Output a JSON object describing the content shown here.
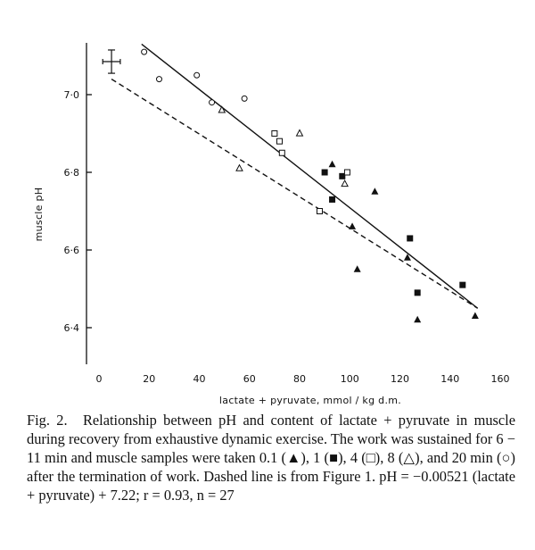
{
  "chart_data": {
    "type": "scatter",
    "xlabel": "lactate + pyruvate,  mmol / kg  d.m.",
    "ylabel": "muscle pH",
    "xlim": [
      0,
      160
    ],
    "ylim": [
      6.3,
      7.25
    ],
    "x_ticks": [
      {
        "value": 0,
        "label": "0"
      },
      {
        "value": 20,
        "label": "20"
      },
      {
        "value": 40,
        "label": "40"
      },
      {
        "value": 60,
        "label": "60"
      },
      {
        "value": 80,
        "label": "80"
      },
      {
        "value": 100,
        "label": "100"
      },
      {
        "value": 120,
        "label": "120"
      },
      {
        "value": 140,
        "label": "140"
      },
      {
        "value": 160,
        "label": "160"
      }
    ],
    "y_ticks": [
      {
        "value": 6.4,
        "label": "6·4"
      },
      {
        "value": 6.6,
        "label": "6·6"
      },
      {
        "value": 6.8,
        "label": "6·8"
      },
      {
        "value": 7.0,
        "label": "7·0"
      }
    ],
    "grid": false,
    "series": [
      {
        "marker": "filled-triangle",
        "points": [
          [
            93,
            6.82
          ],
          [
            101,
            6.66
          ],
          [
            103,
            6.55
          ],
          [
            110,
            6.75
          ],
          [
            123,
            6.58
          ],
          [
            127,
            6.42
          ],
          [
            150,
            6.43
          ]
        ]
      },
      {
        "marker": "filled-square",
        "points": [
          [
            90,
            6.8
          ],
          [
            93,
            6.73
          ],
          [
            97,
            6.79
          ],
          [
            124,
            6.63
          ],
          [
            127,
            6.49
          ],
          [
            145,
            6.51
          ]
        ]
      },
      {
        "marker": "open-square",
        "points": [
          [
            70,
            6.9
          ],
          [
            72,
            6.88
          ],
          [
            73,
            6.85
          ],
          [
            88,
            6.7
          ],
          [
            99,
            6.8
          ]
        ]
      },
      {
        "marker": "open-triangle",
        "points": [
          [
            49,
            6.96
          ],
          [
            56,
            6.81
          ],
          [
            80,
            6.9
          ],
          [
            98,
            6.77
          ]
        ]
      },
      {
        "marker": "open-circle",
        "points": [
          [
            18,
            7.11
          ],
          [
            24,
            7.04
          ],
          [
            39,
            7.05
          ],
          [
            45,
            6.98
          ],
          [
            58,
            6.99
          ]
        ]
      }
    ],
    "reference_point": {
      "x": 5,
      "y": 7.085,
      "x_err": 3.5,
      "y_err": 0.03
    },
    "lines": [
      {
        "style": "solid",
        "x": [
          17,
          151
        ],
        "y": [
          7.13,
          6.45
        ]
      },
      {
        "style": "dashed",
        "x": [
          5,
          151
        ],
        "y": [
          7.04,
          6.45
        ]
      }
    ]
  },
  "caption": {
    "lead": "Fig. 2.",
    "text": "Relationship between pH and content of lactate + pyruvate in muscle during recovery from exhaustive dynamic exercise. The work was sustained for 6 − 11 min and muscle samples were taken 0.1 (▲), 1 (■), 4 (□), 8 (△), and 20 min (○) after the termination of work. Dashed line is from Figure 1. pH = −0.00521 (lactate + pyruvate) + 7.22; r = 0.93, n = 27"
  }
}
